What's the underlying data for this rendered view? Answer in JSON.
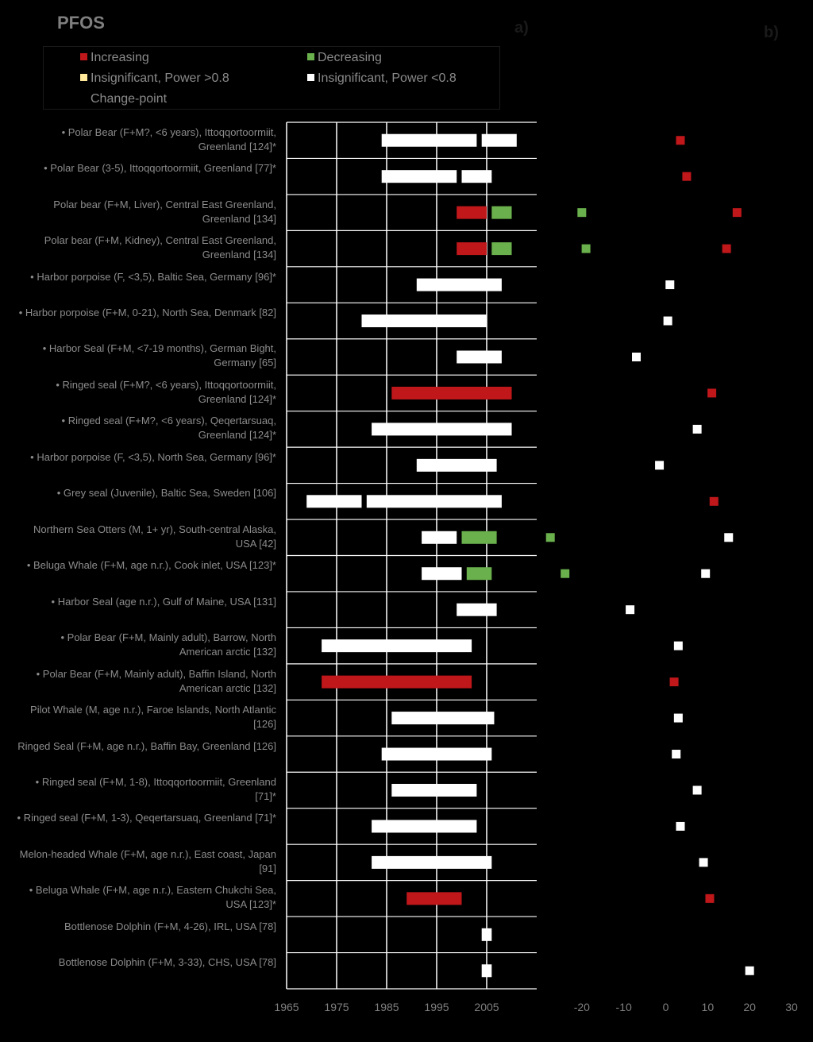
{
  "title": "PFOS",
  "panel_labels": {
    "a": "a)",
    "b": "b)"
  },
  "legend": [
    {
      "label": "Increasing",
      "color": "#c0171b"
    },
    {
      "label": "Decreasing",
      "color": "#6ab04c"
    },
    {
      "label": "Insignificant, Power >0.8",
      "color": "#ffe89a"
    },
    {
      "label": "Insignificant, Power <0.8",
      "color": "#ffffff"
    },
    {
      "label": "Change-point",
      "color": "#000000"
    }
  ],
  "chart_data": [
    {
      "type": "bar",
      "subtype": "timeline-range",
      "xlim": [
        1965,
        2015
      ],
      "xticks": [
        1965,
        1975,
        1985,
        1995,
        2005
      ],
      "grid": true,
      "rows": [
        {
          "label": "• Polar Bear (F+M?, <6 years), Ittoqqortoormiit, Greenland [124]*",
          "segments": [
            {
              "start": 1984,
              "end": 2003,
              "status": "Insignificant, Power <0.8"
            },
            {
              "start": 2004,
              "end": 2011,
              "status": "Insignificant, Power <0.8"
            }
          ]
        },
        {
          "label": "• Polar Bear (3-5), Ittoqqortoormiit, Greenland [77]*",
          "segments": [
            {
              "start": 1984,
              "end": 1999,
              "status": "Insignificant, Power <0.8"
            },
            {
              "start": 2000,
              "end": 2006,
              "status": "Insignificant, Power <0.8"
            }
          ]
        },
        {
          "label": "Polar bear (F+M, Liver), Central East Greenland, Greenland [134]",
          "segments": [
            {
              "start": 1999,
              "end": 2005,
              "status": "Increasing"
            },
            {
              "start": 2006,
              "end": 2010,
              "status": "Decreasing"
            }
          ]
        },
        {
          "label": "Polar bear (F+M, Kidney), Central East Greenland, Greenland [134]",
          "segments": [
            {
              "start": 1999,
              "end": 2005,
              "status": "Increasing"
            },
            {
              "start": 2006,
              "end": 2010,
              "status": "Decreasing"
            }
          ]
        },
        {
          "label": "• Harbor porpoise (F, <3,5), Baltic Sea, Germany [96]*",
          "segments": [
            {
              "start": 1991,
              "end": 2008,
              "status": "Insignificant, Power <0.8"
            }
          ]
        },
        {
          "label": "• Harbor porpoise (F+M, 0-21), North Sea, Denmark [82]",
          "segments": [
            {
              "start": 1980,
              "end": 2005,
              "status": "Insignificant, Power <0.8"
            }
          ]
        },
        {
          "label": "• Harbor Seal (F+M, <7-19 months), German Bight, Germany [65]",
          "segments": [
            {
              "start": 1999,
              "end": 2008,
              "status": "Insignificant, Power <0.8"
            }
          ]
        },
        {
          "label": "• Ringed seal (F+M?, <6 years), Ittoqqortoormiit, Greenland [124]*",
          "segments": [
            {
              "start": 1986,
              "end": 2010,
              "status": "Increasing"
            }
          ]
        },
        {
          "label": "• Ringed seal (F+M?, <6 years), Qeqertarsuaq, Greenland [124]*",
          "segments": [
            {
              "start": 1982,
              "end": 2010,
              "status": "Insignificant, Power <0.8"
            }
          ]
        },
        {
          "label": "• Harbor porpoise (F, <3,5), North Sea, Germany [96]*",
          "segments": [
            {
              "start": 1991,
              "end": 2007,
              "status": "Insignificant, Power <0.8"
            }
          ]
        },
        {
          "label": "• Grey seal (Juvenile), Baltic Sea, Sweden [106]",
          "segments": [
            {
              "start": 1969,
              "end": 1980,
              "status": "Insignificant, Power <0.8"
            },
            {
              "start": 1981,
              "end": 2008,
              "status": "Insignificant, Power <0.8"
            }
          ]
        },
        {
          "label": "Northern Sea Otters (M, 1+ yr), South-central Alaska, USA [42]",
          "segments": [
            {
              "start": 1992,
              "end": 1999,
              "status": "Insignificant, Power <0.8"
            },
            {
              "start": 2000,
              "end": 2007,
              "status": "Decreasing"
            }
          ]
        },
        {
          "label": "• Beluga Whale (F+M, age n.r.), Cook inlet, USA [123]*",
          "segments": [
            {
              "start": 1992,
              "end": 2000,
              "status": "Insignificant, Power <0.8"
            },
            {
              "start": 2001,
              "end": 2006,
              "status": "Decreasing"
            }
          ]
        },
        {
          "label": "• Harbor Seal (age n.r.), Gulf of Maine, USA [131]",
          "segments": [
            {
              "start": 1999,
              "end": 2007,
              "status": "Insignificant, Power <0.8"
            }
          ]
        },
        {
          "label": "• Polar Bear (F+M, Mainly adult), Barrow, North American arctic [132]",
          "segments": [
            {
              "start": 1972,
              "end": 2002,
              "status": "Insignificant, Power <0.8"
            }
          ]
        },
        {
          "label": "• Polar Bear (F+M, Mainly adult), Baffin Island, North American arctic [132]",
          "segments": [
            {
              "start": 1972,
              "end": 2002,
              "status": "Increasing"
            }
          ]
        },
        {
          "label": "Pilot Whale (M, age n.r.), Faroe Islands, North Atlantic [126]",
          "segments": [
            {
              "start": 1986,
              "end": 2006.5,
              "status": "Insignificant, Power <0.8"
            }
          ]
        },
        {
          "label": "Ringed Seal (F+M, age n.r.), Baffin Bay, Greenland [126]",
          "segments": [
            {
              "start": 1984,
              "end": 2006,
              "status": "Insignificant, Power <0.8"
            }
          ]
        },
        {
          "label": "• Ringed seal (F+M, 1-8), Ittoqqortoormiit, Greenland [71]*",
          "segments": [
            {
              "start": 1986,
              "end": 2003,
              "status": "Insignificant, Power <0.8"
            }
          ]
        },
        {
          "label": "• Ringed seal (F+M, 1-3), Qeqertarsuaq, Greenland [71]*",
          "segments": [
            {
              "start": 1982,
              "end": 2003,
              "status": "Insignificant, Power <0.8"
            }
          ]
        },
        {
          "label": "Melon-headed Whale (F+M, age n.r.), East coast, Japan [91]",
          "segments": [
            {
              "start": 1982,
              "end": 2006,
              "status": "Insignificant, Power <0.8"
            }
          ]
        },
        {
          "label": "• Beluga Whale (F+M, age n.r.), Eastern Chukchi Sea, USA [123]*",
          "segments": [
            {
              "start": 1989,
              "end": 2000,
              "status": "Increasing"
            }
          ]
        },
        {
          "label": "Bottlenose Dolphin (F+M, 4-26), IRL, USA [78]",
          "segments": [
            {
              "start": 2004,
              "end": 2006,
              "status": "Insignificant, Power <0.8"
            }
          ]
        },
        {
          "label": "Bottlenose Dolphin (F+M, 3-33), CHS, USA [78]",
          "segments": [
            {
              "start": 2004,
              "end": 2006,
              "status": "Insignificant, Power <0.8"
            }
          ]
        }
      ]
    },
    {
      "type": "scatter",
      "xlim": [
        -30,
        30
      ],
      "xticks": [
        -20,
        -10,
        0,
        10,
        20,
        30
      ],
      "grid": false,
      "rows": [
        {
          "points": [
            {
              "x": 3.5,
              "status": "Increasing"
            }
          ]
        },
        {
          "points": [
            {
              "x": 5,
              "status": "Increasing"
            }
          ]
        },
        {
          "points": [
            {
              "x": -20,
              "status": "Decreasing"
            },
            {
              "x": 17,
              "status": "Increasing"
            }
          ]
        },
        {
          "points": [
            {
              "x": -19,
              "status": "Decreasing"
            },
            {
              "x": 14.5,
              "status": "Increasing"
            }
          ]
        },
        {
          "points": [
            {
              "x": 1,
              "status": "Insignificant, Power <0.8"
            }
          ]
        },
        {
          "points": [
            {
              "x": 0.5,
              "status": "Insignificant, Power <0.8"
            }
          ]
        },
        {
          "points": [
            {
              "x": -7,
              "status": "Insignificant, Power <0.8"
            }
          ]
        },
        {
          "points": [
            {
              "x": 11,
              "status": "Increasing"
            }
          ]
        },
        {
          "points": [
            {
              "x": 7.5,
              "status": "Insignificant, Power <0.8"
            }
          ]
        },
        {
          "points": [
            {
              "x": -1.5,
              "status": "Insignificant, Power <0.8"
            }
          ]
        },
        {
          "points": [
            {
              "x": 11.5,
              "status": "Increasing"
            }
          ]
        },
        {
          "points": [
            {
              "x": -27.5,
              "status": "Decreasing"
            },
            {
              "x": 15,
              "status": "Insignificant, Power <0.8"
            }
          ]
        },
        {
          "points": [
            {
              "x": -24,
              "status": "Decreasing"
            },
            {
              "x": 9.5,
              "status": "Insignificant, Power <0.8"
            }
          ]
        },
        {
          "points": [
            {
              "x": -8.5,
              "status": "Insignificant, Power <0.8"
            }
          ]
        },
        {
          "points": [
            {
              "x": 3,
              "status": "Insignificant, Power <0.8"
            }
          ]
        },
        {
          "points": [
            {
              "x": 2,
              "status": "Increasing"
            }
          ]
        },
        {
          "points": [
            {
              "x": 3,
              "status": "Insignificant, Power <0.8"
            }
          ]
        },
        {
          "points": [
            {
              "x": 2.5,
              "status": "Insignificant, Power <0.8"
            }
          ]
        },
        {
          "points": [
            {
              "x": 7.5,
              "status": "Insignificant, Power <0.8"
            }
          ]
        },
        {
          "points": [
            {
              "x": 3.5,
              "status": "Insignificant, Power <0.8"
            }
          ]
        },
        {
          "points": [
            {
              "x": 9,
              "status": "Insignificant, Power <0.8"
            }
          ]
        },
        {
          "points": [
            {
              "x": 10.5,
              "status": "Increasing"
            }
          ]
        },
        {
          "points": []
        },
        {
          "points": [
            {
              "x": 20,
              "status": "Insignificant, Power <0.8"
            }
          ]
        }
      ]
    }
  ]
}
